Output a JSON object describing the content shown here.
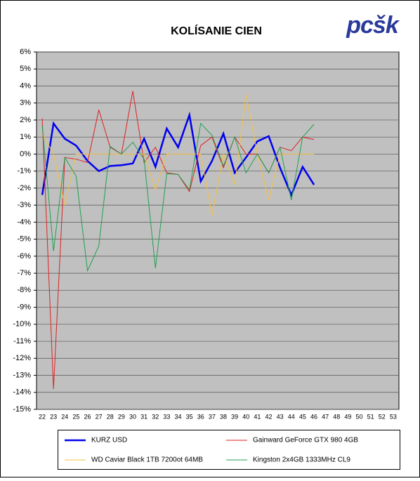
{
  "logo": "pcšk",
  "chart_data": {
    "type": "line",
    "title": "KOLÍSANIE CIEN",
    "categories": [
      "22",
      "23",
      "24",
      "25",
      "26",
      "27",
      "28",
      "29",
      "30",
      "31",
      "32",
      "33",
      "34",
      "35",
      "36",
      "37",
      "38",
      "39",
      "40",
      "41",
      "42",
      "43",
      "44",
      "45",
      "46",
      "47",
      "48",
      "49",
      "50",
      "51",
      "52",
      "53"
    ],
    "series": [
      {
        "name": "KURZ USD",
        "color": "#0000ee",
        "width": 2.5,
        "values": [
          -2.4,
          1.8,
          0.9,
          0.5,
          -0.4,
          -1.0,
          -0.7,
          -0.65,
          -0.55,
          0.9,
          -0.75,
          1.5,
          0.4,
          2.3,
          -1.6,
          -0.4,
          1.2,
          -1.1,
          -0.2,
          0.75,
          1.05,
          -0.8,
          -2.4,
          -0.75,
          -1.8,
          null,
          null,
          null,
          null,
          null,
          null,
          null
        ]
      },
      {
        "name": "Gainward GeForce GTX 980 4GB",
        "color": "#e02020",
        "width": 1,
        "values": [
          2.1,
          -13.8,
          -0.2,
          -0.3,
          -0.5,
          2.6,
          0.4,
          0,
          3.7,
          -0.5,
          0.4,
          -1.1,
          -1.2,
          -2.2,
          0.5,
          1.0,
          -0.8,
          1.0,
          0,
          0,
          -1.1,
          0.4,
          0.2,
          1.0,
          0.85,
          null,
          null,
          null,
          null,
          null,
          null,
          null
        ]
      },
      {
        "name": "WD Caviar Black 1TB 7200ot 64MB",
        "color": "#f5c040",
        "width": 1,
        "values": [
          1.2,
          0,
          -3.0,
          0,
          0,
          0,
          0,
          0,
          0,
          0,
          -2.1,
          0,
          0,
          0,
          0,
          -3.6,
          0,
          -1.8,
          3.5,
          0,
          -2.7,
          0,
          0,
          0,
          0,
          null,
          null,
          null,
          null,
          null,
          null,
          null
        ]
      },
      {
        "name": "Kingston 2x4GB 1333MHz CL9",
        "color": "#20a050",
        "width": 1,
        "values": [
          1.7,
          -5.7,
          -0.2,
          -1.3,
          -6.85,
          -5.4,
          0.45,
          0,
          0.7,
          -0.3,
          -6.7,
          -1.15,
          -1.2,
          -2.1,
          1.8,
          1.1,
          -0.7,
          1.0,
          -1.1,
          0,
          -1.1,
          0.4,
          -2.7,
          1.0,
          1.75,
          null,
          null,
          null,
          null,
          null,
          null,
          null
        ]
      }
    ],
    "ylim": [
      -15,
      6
    ],
    "yticks": [
      {
        "value": -15,
        "label": "-15%"
      },
      {
        "value": -14,
        "label": "-14%"
      },
      {
        "value": -13,
        "label": "-13%"
      },
      {
        "value": -12,
        "label": "-12%"
      },
      {
        "value": -11,
        "label": "-11%"
      },
      {
        "value": -10,
        "label": "-10%"
      },
      {
        "value": -9,
        "label": "-9%"
      },
      {
        "value": -8,
        "label": "-8%"
      },
      {
        "value": -7,
        "label": "-7%"
      },
      {
        "value": -6,
        "label": "-6%"
      },
      {
        "value": -5,
        "label": "-5%"
      },
      {
        "value": -4,
        "label": "-4%"
      },
      {
        "value": -3,
        "label": "-3%"
      },
      {
        "value": -2,
        "label": "-2%"
      },
      {
        "value": -1,
        "label": "-1%"
      },
      {
        "value": 0,
        "label": "0%"
      },
      {
        "value": 1,
        "label": "1%"
      },
      {
        "value": 2,
        "label": "2%"
      },
      {
        "value": 3,
        "label": "3%"
      },
      {
        "value": 4,
        "label": "4%"
      },
      {
        "value": 5,
        "label": "5%"
      },
      {
        "value": 6,
        "label": "6%"
      }
    ],
    "grid": true
  }
}
